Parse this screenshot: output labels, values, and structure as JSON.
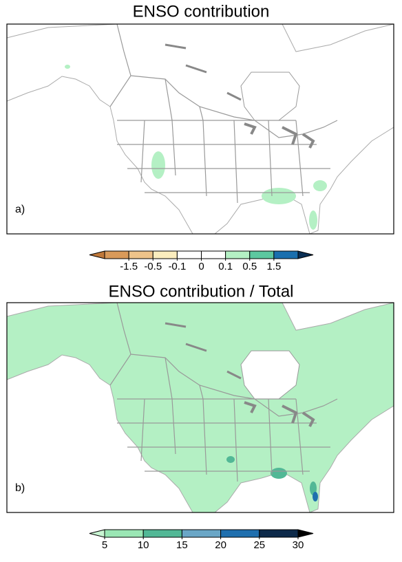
{
  "panels": [
    {
      "title": "ENSO contribution",
      "label": "a)",
      "land_color": "#ffffff",
      "colorbar": {
        "ticks": [
          -1.5,
          -0.5,
          -0.1,
          0,
          0.1,
          0.5,
          1.5
        ],
        "colors": [
          "#c0793a",
          "#d99a5a",
          "#eec38a",
          "#fbedbe",
          "#ffffff",
          "#ffffff",
          "#b4f0c4",
          "#5cc8a0",
          "#1a6fae",
          "#0a2f55"
        ]
      }
    },
    {
      "title": "ENSO contribution / Total",
      "label": "b)",
      "land_color": "#b4f0c4",
      "colorbar": {
        "ticks": [
          5,
          10,
          15,
          20,
          25,
          30
        ],
        "colors": [
          "#c8f5d2",
          "#9ae6b4",
          "#52b896",
          "#6aa6c6",
          "#1f6fae",
          "#0d2a4a",
          "#000000"
        ]
      }
    }
  ]
}
